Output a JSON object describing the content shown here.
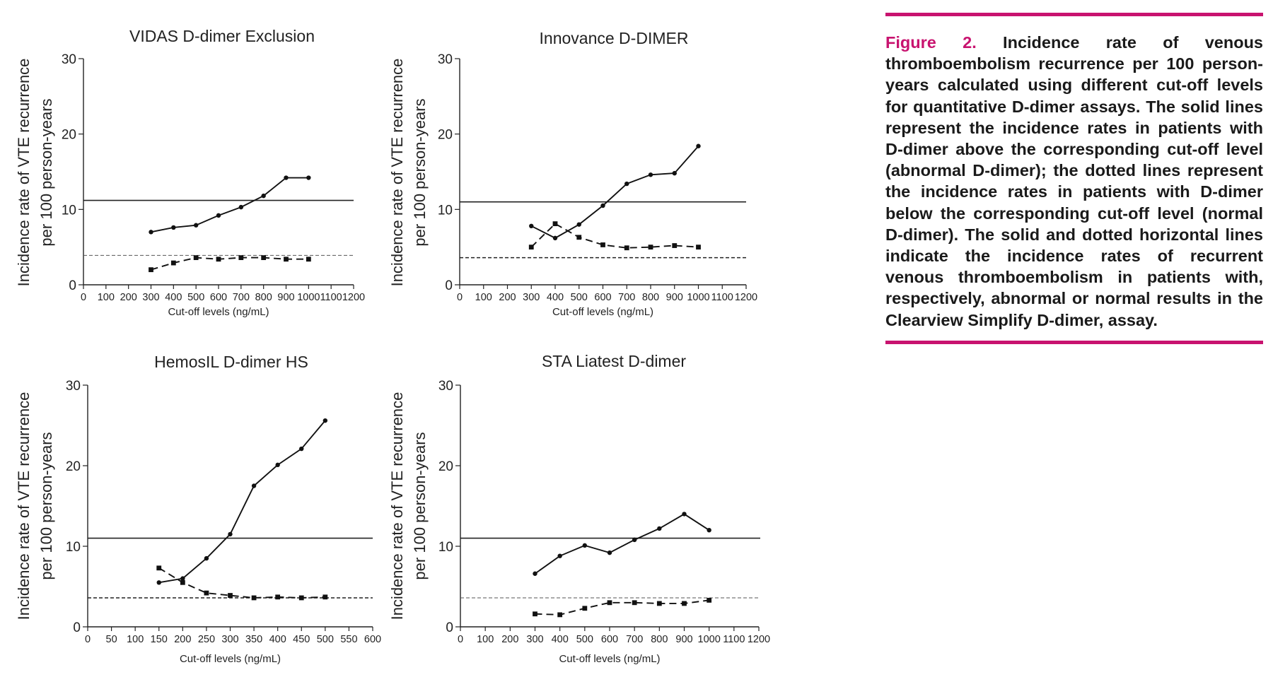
{
  "caption": {
    "label": "Figure 2.",
    "text": " Incidence rate of venous thromboembolism recurrence per 100 person-years calculated using different cut-off levels for quantitative D-dimer assays. The solid lines represent the incidence rates in patients with D-dimer above the corresponding cut-off level (abnormal D-dimer); the dotted lines represent the incidence rates in patients with D-dimer below the corresponding cut-off level (normal D-dimer). The solid and dotted horizontal lines indicate the incidence rates of recurrent venous thromboembolism in patients with, respectively, abnormal or normal results in the Clearview Simplify D-dimer, assay.",
    "accent_color": "#c8136f"
  },
  "chart_data": [
    {
      "type": "line",
      "title": "VIDAS D-dimer Exclusion",
      "xlabel": "Cut-off levels (ng/mL)",
      "ylabel": [
        "Incidence rate of VTE recurrence",
        "per 100 person-years"
      ],
      "xlim": [
        0,
        1200
      ],
      "xticks": [
        0,
        100,
        200,
        300,
        400,
        500,
        600,
        700,
        800,
        900,
        1000,
        1100,
        1200
      ],
      "ylim": [
        0,
        30
      ],
      "yticks": [
        0,
        10,
        20,
        30
      ],
      "series": [
        {
          "style": "solid",
          "marker": "circle",
          "x": [
            300,
            400,
            500,
            600,
            700,
            800,
            900,
            1000
          ],
          "y": [
            7.0,
            7.6,
            7.9,
            9.2,
            10.3,
            11.8,
            14.2,
            14.2
          ]
        },
        {
          "style": "dashed",
          "marker": "square",
          "x": [
            300,
            400,
            500,
            600,
            700,
            800,
            900,
            1000
          ],
          "y": [
            2.0,
            2.9,
            3.6,
            3.4,
            3.6,
            3.6,
            3.4,
            3.4
          ]
        }
      ],
      "reference_lines": [
        {
          "style": "solid",
          "y": 11.2
        },
        {
          "style": "dashed-thin",
          "y": 3.9
        }
      ]
    },
    {
      "type": "line",
      "title": "Innovance D-DIMER",
      "xlabel": "Cut-off levels (ng/mL)",
      "ylabel": [
        "Incidence rate of VTE recurrence",
        "per 100 person-years"
      ],
      "xlim": [
        0,
        1200
      ],
      "xticks": [
        0,
        100,
        200,
        300,
        400,
        500,
        600,
        700,
        800,
        900,
        1000,
        1100,
        1200
      ],
      "ylim": [
        0,
        30
      ],
      "yticks": [
        0,
        10,
        20,
        30
      ],
      "series": [
        {
          "style": "solid",
          "marker": "circle",
          "x": [
            300,
            400,
            500,
            600,
            700,
            800,
            900,
            1000
          ],
          "y": [
            7.8,
            6.2,
            8.0,
            10.5,
            13.4,
            14.6,
            14.8,
            18.4
          ]
        },
        {
          "style": "dashed",
          "marker": "square",
          "x": [
            300,
            400,
            500,
            600,
            700,
            800,
            900,
            1000
          ],
          "y": [
            5.0,
            8.1,
            6.3,
            5.3,
            4.9,
            5.0,
            5.2,
            5.0
          ]
        }
      ],
      "reference_lines": [
        {
          "style": "solid",
          "y": 11.0
        },
        {
          "style": "dashed",
          "y": 3.6
        }
      ]
    },
    {
      "type": "line",
      "title": "HemosIL D-dimer HS",
      "xlabel": "Cut-off levels (ng/mL)",
      "ylabel": [
        "Incidence rate of VTE recurrence",
        "per 100 person-years"
      ],
      "xlim": [
        0,
        600
      ],
      "xticks": [
        0,
        50,
        100,
        150,
        200,
        250,
        300,
        350,
        400,
        450,
        500,
        550,
        600
      ],
      "ylim": [
        0,
        30
      ],
      "yticks": [
        0,
        10,
        20,
        30
      ],
      "series": [
        {
          "style": "solid",
          "marker": "circle",
          "x": [
            150,
            200,
            250,
            300,
            350,
            400,
            450,
            500
          ],
          "y": [
            5.5,
            6.0,
            8.5,
            11.5,
            17.5,
            20.1,
            22.1,
            25.6
          ]
        },
        {
          "style": "dashed",
          "marker": "square",
          "x": [
            150,
            200,
            250,
            300,
            350,
            400,
            450,
            500
          ],
          "y": [
            7.3,
            5.5,
            4.2,
            3.9,
            3.6,
            3.7,
            3.6,
            3.7
          ]
        }
      ],
      "reference_lines": [
        {
          "style": "solid",
          "y": 11.0
        },
        {
          "style": "dashed",
          "y": 3.6
        }
      ]
    },
    {
      "type": "line",
      "title": "STA Liatest D-dimer",
      "xlabel": "Cut-off levels (ng/mL)",
      "ylabel": [
        "Incidence rate of VTE recurrence",
        "per 100 person-years"
      ],
      "xlim": [
        0,
        1200
      ],
      "xticks": [
        0,
        100,
        200,
        300,
        400,
        500,
        600,
        700,
        800,
        900,
        1000,
        1100,
        1200
      ],
      "ylim": [
        0,
        30
      ],
      "yticks": [
        0,
        10,
        20,
        30
      ],
      "series": [
        {
          "style": "solid",
          "marker": "circle",
          "x": [
            300,
            400,
            500,
            600,
            700,
            800,
            900,
            1000
          ],
          "y": [
            6.6,
            8.8,
            10.1,
            9.2,
            10.8,
            12.2,
            14.0,
            12.0
          ]
        },
        {
          "style": "dashed",
          "marker": "square",
          "x": [
            300,
            400,
            500,
            600,
            700,
            800,
            900,
            1000
          ],
          "y": [
            1.6,
            1.5,
            2.3,
            3.0,
            3.0,
            2.9,
            2.9,
            3.3
          ]
        }
      ],
      "reference_lines": [
        {
          "style": "solid",
          "y": 11.0
        },
        {
          "style": "dashed-thin",
          "y": 3.6
        }
      ]
    }
  ]
}
